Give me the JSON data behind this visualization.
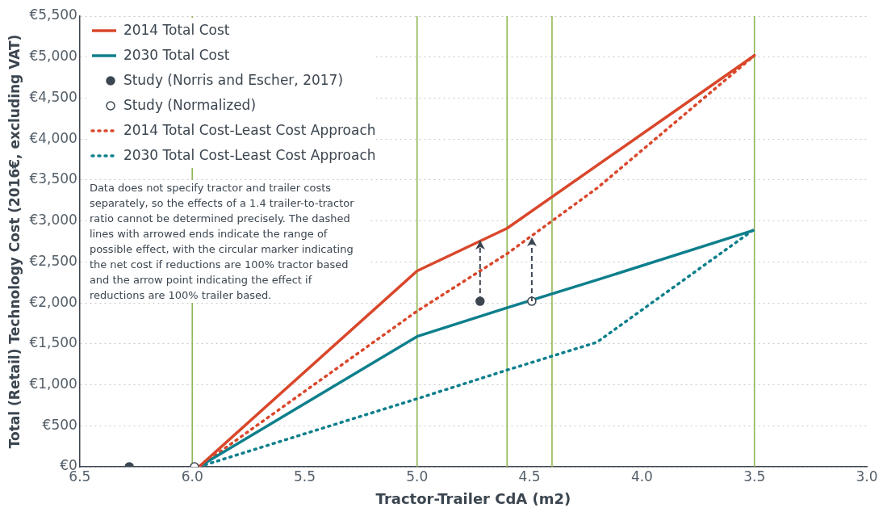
{
  "chart_data": {
    "type": "line",
    "xlabel": "Tractor-Trailer CdA (m2)",
    "ylabel": "Total (Retail) Technology Cost (2016€, excluding VAT)",
    "xlim": [
      6.5,
      3.0
    ],
    "xticks": [
      {
        "value": 6.5,
        "label": "6.5"
      },
      {
        "value": 6,
        "label": "6.0"
      },
      {
        "value": 5.5,
        "label": "5.5"
      },
      {
        "value": 5,
        "label": "5.0"
      },
      {
        "value": 4.5,
        "label": "4.5"
      },
      {
        "value": 4,
        "label": "4.0"
      },
      {
        "value": 3.5,
        "label": "3.5"
      },
      {
        "value": 3,
        "label": "3.0"
      }
    ],
    "ylim": [
      0,
      5500
    ],
    "yticks": [
      {
        "value": 0,
        "label": "€0"
      },
      {
        "value": 500,
        "label": "€500"
      },
      {
        "value": 1000,
        "label": "€1,000"
      },
      {
        "value": 1500,
        "label": "€1,500"
      },
      {
        "value": 2000,
        "label": "€2,000"
      },
      {
        "value": 2500,
        "label": "€2,500"
      },
      {
        "value": 3000,
        "label": "€3,000"
      },
      {
        "value": 3500,
        "label": "€3,500"
      },
      {
        "value": 4000,
        "label": "€4,000"
      },
      {
        "value": 4500,
        "label": "€4,500"
      },
      {
        "value": 5000,
        "label": "€5,000"
      },
      {
        "value": 5500,
        "label": "€5,500"
      }
    ],
    "grid": "y",
    "legend": "top left",
    "series": [
      {
        "name": "2014 Total Cost",
        "color": "#d9472b",
        "line_style": "solid",
        "marker": "none",
        "x": [
          5.97,
          5.0,
          4.6,
          3.5
        ],
        "values": [
          0,
          2390,
          2910,
          5020
        ]
      },
      {
        "name": "2030 Total Cost",
        "color": "#0e7f8c",
        "line_style": "solid",
        "marker": "none",
        "x": [
          5.97,
          5.0,
          4.6,
          4.2,
          3.5
        ],
        "values": [
          0,
          1590,
          1940,
          2280,
          2890
        ]
      },
      {
        "name": "Study (Norris and Escher, 2017)",
        "type": "scatter",
        "color": "#3c4650",
        "marker": "circle",
        "x": [
          6.28,
          4.72
        ],
        "values": [
          0,
          2020
        ],
        "errors": [
          null,
          [
            2020,
            2760
          ]
        ]
      },
      {
        "name": "Study (Normalized)",
        "type": "scatter",
        "color": "#ffffff",
        "marker": "circle",
        "x": [
          5.99,
          4.49
        ],
        "values": [
          0,
          2020
        ],
        "errors": [
          null,
          [
            2020,
            2800
          ]
        ]
      },
      {
        "name": "2014 Total Cost-Least Cost Approach",
        "color": "#d9472b",
        "line_style": "dotted",
        "marker": "none",
        "x": [
          5.97,
          5.0,
          4.6,
          4.2,
          3.5
        ],
        "values": [
          0,
          1900,
          2600,
          3400,
          5020
        ]
      },
      {
        "name": "2030 Total Cost-Least Cost Approach",
        "color": "#0e7f8c",
        "line_style": "dotted",
        "marker": "none",
        "x": [
          5.97,
          5.0,
          4.6,
          4.2,
          3.5
        ],
        "values": [
          0,
          830,
          1180,
          1520,
          2900
        ]
      }
    ],
    "ref_lines": [
      {
        "axis": "x",
        "value": 6.0,
        "color": "#8ab34a"
      },
      {
        "axis": "x",
        "value": 5.0,
        "color": "#8ab34a"
      },
      {
        "axis": "x",
        "value": 4.6,
        "color": "#8ab34a"
      },
      {
        "axis": "x",
        "value": 4.4,
        "color": "#8ab34a"
      },
      {
        "axis": "x",
        "value": 3.5,
        "color": "#8ab34a"
      }
    ],
    "annotations": [
      "Data does not specify tractor and trailer costs separately, so the effects of a 1.4 trailer-to-tractor ratio cannot be determined precisely. The dashed lines with arrowed ends indicate the range of possible effect, with the circular marker indicating the net cost if reductions are 100% tractor based and the arrow point indicating the effect if reductions are 100% trailer based."
    ]
  }
}
